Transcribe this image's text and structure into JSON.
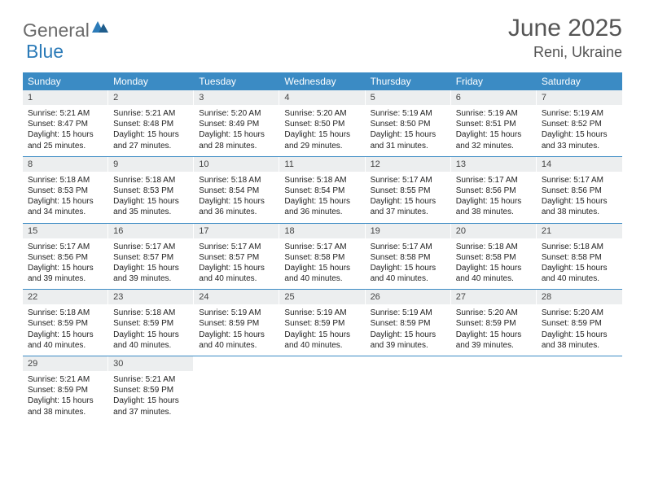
{
  "brand": {
    "part1": "General",
    "part2": "Blue"
  },
  "title": "June 2025",
  "location": "Reni, Ukraine",
  "colors": {
    "header_bg": "#3b8bc4",
    "daynum_bg": "#eceeef",
    "week_border": "#3b8bc4",
    "brand_gray": "#6b6b6b",
    "brand_blue": "#2c7bb8"
  },
  "weekdays": [
    "Sunday",
    "Monday",
    "Tuesday",
    "Wednesday",
    "Thursday",
    "Friday",
    "Saturday"
  ],
  "weeks": [
    [
      {
        "n": "1",
        "sunrise": "5:21 AM",
        "sunset": "8:47 PM",
        "daylight": "15 hours and 25 minutes."
      },
      {
        "n": "2",
        "sunrise": "5:21 AM",
        "sunset": "8:48 PM",
        "daylight": "15 hours and 27 minutes."
      },
      {
        "n": "3",
        "sunrise": "5:20 AM",
        "sunset": "8:49 PM",
        "daylight": "15 hours and 28 minutes."
      },
      {
        "n": "4",
        "sunrise": "5:20 AM",
        "sunset": "8:50 PM",
        "daylight": "15 hours and 29 minutes."
      },
      {
        "n": "5",
        "sunrise": "5:19 AM",
        "sunset": "8:50 PM",
        "daylight": "15 hours and 31 minutes."
      },
      {
        "n": "6",
        "sunrise": "5:19 AM",
        "sunset": "8:51 PM",
        "daylight": "15 hours and 32 minutes."
      },
      {
        "n": "7",
        "sunrise": "5:19 AM",
        "sunset": "8:52 PM",
        "daylight": "15 hours and 33 minutes."
      }
    ],
    [
      {
        "n": "8",
        "sunrise": "5:18 AM",
        "sunset": "8:53 PM",
        "daylight": "15 hours and 34 minutes."
      },
      {
        "n": "9",
        "sunrise": "5:18 AM",
        "sunset": "8:53 PM",
        "daylight": "15 hours and 35 minutes."
      },
      {
        "n": "10",
        "sunrise": "5:18 AM",
        "sunset": "8:54 PM",
        "daylight": "15 hours and 36 minutes."
      },
      {
        "n": "11",
        "sunrise": "5:18 AM",
        "sunset": "8:54 PM",
        "daylight": "15 hours and 36 minutes."
      },
      {
        "n": "12",
        "sunrise": "5:17 AM",
        "sunset": "8:55 PM",
        "daylight": "15 hours and 37 minutes."
      },
      {
        "n": "13",
        "sunrise": "5:17 AM",
        "sunset": "8:56 PM",
        "daylight": "15 hours and 38 minutes."
      },
      {
        "n": "14",
        "sunrise": "5:17 AM",
        "sunset": "8:56 PM",
        "daylight": "15 hours and 38 minutes."
      }
    ],
    [
      {
        "n": "15",
        "sunrise": "5:17 AM",
        "sunset": "8:56 PM",
        "daylight": "15 hours and 39 minutes."
      },
      {
        "n": "16",
        "sunrise": "5:17 AM",
        "sunset": "8:57 PM",
        "daylight": "15 hours and 39 minutes."
      },
      {
        "n": "17",
        "sunrise": "5:17 AM",
        "sunset": "8:57 PM",
        "daylight": "15 hours and 40 minutes."
      },
      {
        "n": "18",
        "sunrise": "5:17 AM",
        "sunset": "8:58 PM",
        "daylight": "15 hours and 40 minutes."
      },
      {
        "n": "19",
        "sunrise": "5:17 AM",
        "sunset": "8:58 PM",
        "daylight": "15 hours and 40 minutes."
      },
      {
        "n": "20",
        "sunrise": "5:18 AM",
        "sunset": "8:58 PM",
        "daylight": "15 hours and 40 minutes."
      },
      {
        "n": "21",
        "sunrise": "5:18 AM",
        "sunset": "8:58 PM",
        "daylight": "15 hours and 40 minutes."
      }
    ],
    [
      {
        "n": "22",
        "sunrise": "5:18 AM",
        "sunset": "8:59 PM",
        "daylight": "15 hours and 40 minutes."
      },
      {
        "n": "23",
        "sunrise": "5:18 AM",
        "sunset": "8:59 PM",
        "daylight": "15 hours and 40 minutes."
      },
      {
        "n": "24",
        "sunrise": "5:19 AM",
        "sunset": "8:59 PM",
        "daylight": "15 hours and 40 minutes."
      },
      {
        "n": "25",
        "sunrise": "5:19 AM",
        "sunset": "8:59 PM",
        "daylight": "15 hours and 40 minutes."
      },
      {
        "n": "26",
        "sunrise": "5:19 AM",
        "sunset": "8:59 PM",
        "daylight": "15 hours and 39 minutes."
      },
      {
        "n": "27",
        "sunrise": "5:20 AM",
        "sunset": "8:59 PM",
        "daylight": "15 hours and 39 minutes."
      },
      {
        "n": "28",
        "sunrise": "5:20 AM",
        "sunset": "8:59 PM",
        "daylight": "15 hours and 38 minutes."
      }
    ],
    [
      {
        "n": "29",
        "sunrise": "5:21 AM",
        "sunset": "8:59 PM",
        "daylight": "15 hours and 38 minutes."
      },
      {
        "n": "30",
        "sunrise": "5:21 AM",
        "sunset": "8:59 PM",
        "daylight": "15 hours and 37 minutes."
      },
      null,
      null,
      null,
      null,
      null
    ]
  ]
}
